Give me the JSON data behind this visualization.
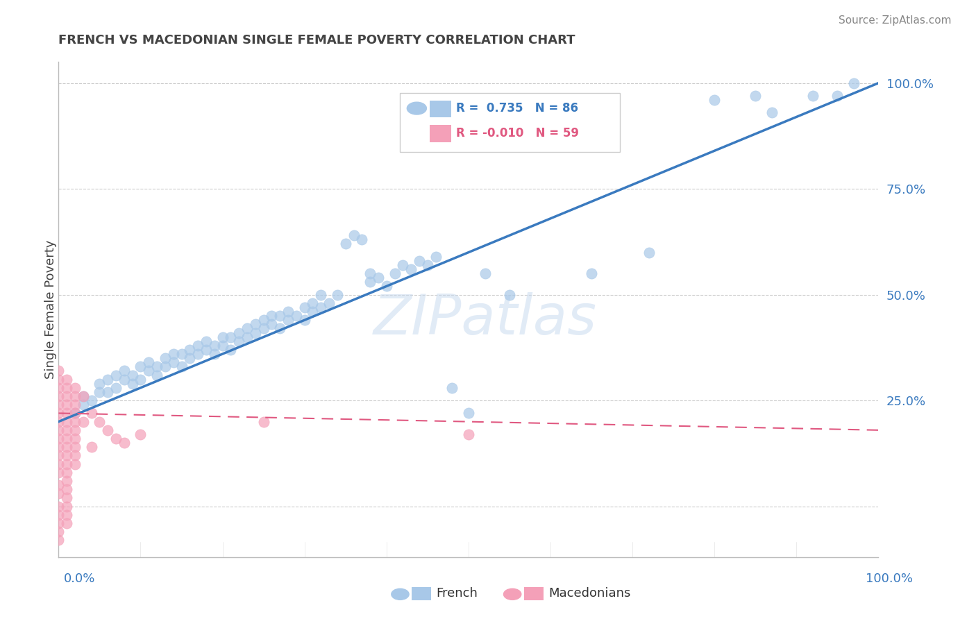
{
  "title": "FRENCH VS MACEDONIAN SINGLE FEMALE POVERTY CORRELATION CHART",
  "source": "Source: ZipAtlas.com",
  "ylabel": "Single Female Poverty",
  "right_yticklabels": [
    "",
    "25.0%",
    "50.0%",
    "75.0%",
    "100.0%"
  ],
  "right_ytick_positions": [
    0.0,
    0.25,
    0.5,
    0.75,
    1.0
  ],
  "french_R": 0.735,
  "french_N": 86,
  "macedonian_R": -0.01,
  "macedonian_N": 59,
  "french_color": "#a8c8e8",
  "french_line_color": "#3a7abf",
  "macedonian_color": "#f4a0b8",
  "macedonian_line_color": "#e05880",
  "watermark": "ZIPatlas",
  "background_color": "#ffffff",
  "french_scatter": [
    [
      0.02,
      0.22
    ],
    [
      0.03,
      0.24
    ],
    [
      0.03,
      0.26
    ],
    [
      0.04,
      0.25
    ],
    [
      0.05,
      0.27
    ],
    [
      0.05,
      0.29
    ],
    [
      0.06,
      0.27
    ],
    [
      0.06,
      0.3
    ],
    [
      0.07,
      0.28
    ],
    [
      0.07,
      0.31
    ],
    [
      0.08,
      0.3
    ],
    [
      0.08,
      0.32
    ],
    [
      0.09,
      0.29
    ],
    [
      0.09,
      0.31
    ],
    [
      0.1,
      0.3
    ],
    [
      0.1,
      0.33
    ],
    [
      0.11,
      0.32
    ],
    [
      0.11,
      0.34
    ],
    [
      0.12,
      0.31
    ],
    [
      0.12,
      0.33
    ],
    [
      0.13,
      0.33
    ],
    [
      0.13,
      0.35
    ],
    [
      0.14,
      0.34
    ],
    [
      0.14,
      0.36
    ],
    [
      0.15,
      0.33
    ],
    [
      0.15,
      0.36
    ],
    [
      0.16,
      0.35
    ],
    [
      0.16,
      0.37
    ],
    [
      0.17,
      0.36
    ],
    [
      0.17,
      0.38
    ],
    [
      0.18,
      0.37
    ],
    [
      0.18,
      0.39
    ],
    [
      0.19,
      0.36
    ],
    [
      0.19,
      0.38
    ],
    [
      0.2,
      0.38
    ],
    [
      0.2,
      0.4
    ],
    [
      0.21,
      0.37
    ],
    [
      0.21,
      0.4
    ],
    [
      0.22,
      0.39
    ],
    [
      0.22,
      0.41
    ],
    [
      0.23,
      0.4
    ],
    [
      0.23,
      0.42
    ],
    [
      0.24,
      0.41
    ],
    [
      0.24,
      0.43
    ],
    [
      0.25,
      0.42
    ],
    [
      0.25,
      0.44
    ],
    [
      0.26,
      0.43
    ],
    [
      0.26,
      0.45
    ],
    [
      0.27,
      0.42
    ],
    [
      0.27,
      0.45
    ],
    [
      0.28,
      0.44
    ],
    [
      0.28,
      0.46
    ],
    [
      0.29,
      0.45
    ],
    [
      0.3,
      0.47
    ],
    [
      0.3,
      0.44
    ],
    [
      0.31,
      0.46
    ],
    [
      0.31,
      0.48
    ],
    [
      0.32,
      0.47
    ],
    [
      0.32,
      0.5
    ],
    [
      0.33,
      0.48
    ],
    [
      0.34,
      0.5
    ],
    [
      0.35,
      0.62
    ],
    [
      0.36,
      0.64
    ],
    [
      0.37,
      0.63
    ],
    [
      0.38,
      0.53
    ],
    [
      0.38,
      0.55
    ],
    [
      0.39,
      0.54
    ],
    [
      0.4,
      0.52
    ],
    [
      0.41,
      0.55
    ],
    [
      0.42,
      0.57
    ],
    [
      0.43,
      0.56
    ],
    [
      0.44,
      0.58
    ],
    [
      0.45,
      0.57
    ],
    [
      0.46,
      0.59
    ],
    [
      0.48,
      0.28
    ],
    [
      0.5,
      0.22
    ],
    [
      0.52,
      0.55
    ],
    [
      0.55,
      0.5
    ],
    [
      0.65,
      0.55
    ],
    [
      0.72,
      0.6
    ],
    [
      0.8,
      0.96
    ],
    [
      0.85,
      0.97
    ],
    [
      0.87,
      0.93
    ],
    [
      0.92,
      0.97
    ],
    [
      0.95,
      0.97
    ],
    [
      0.97,
      1.0
    ]
  ],
  "macedonian_scatter": [
    [
      0.0,
      0.32
    ],
    [
      0.0,
      0.3
    ],
    [
      0.0,
      0.28
    ],
    [
      0.0,
      0.26
    ],
    [
      0.0,
      0.24
    ],
    [
      0.0,
      0.22
    ],
    [
      0.0,
      0.2
    ],
    [
      0.0,
      0.18
    ],
    [
      0.0,
      0.16
    ],
    [
      0.0,
      0.14
    ],
    [
      0.0,
      0.12
    ],
    [
      0.0,
      0.1
    ],
    [
      0.0,
      0.08
    ],
    [
      0.0,
      0.05
    ],
    [
      0.0,
      0.03
    ],
    [
      0.0,
      0.0
    ],
    [
      0.0,
      -0.02
    ],
    [
      0.0,
      -0.04
    ],
    [
      0.0,
      -0.06
    ],
    [
      0.0,
      -0.08
    ],
    [
      0.01,
      0.3
    ],
    [
      0.01,
      0.28
    ],
    [
      0.01,
      0.26
    ],
    [
      0.01,
      0.24
    ],
    [
      0.01,
      0.22
    ],
    [
      0.01,
      0.2
    ],
    [
      0.01,
      0.18
    ],
    [
      0.01,
      0.16
    ],
    [
      0.01,
      0.14
    ],
    [
      0.01,
      0.12
    ],
    [
      0.01,
      0.1
    ],
    [
      0.01,
      0.08
    ],
    [
      0.01,
      0.06
    ],
    [
      0.01,
      0.04
    ],
    [
      0.01,
      0.02
    ],
    [
      0.01,
      0.0
    ],
    [
      0.01,
      -0.02
    ],
    [
      0.01,
      -0.04
    ],
    [
      0.02,
      0.28
    ],
    [
      0.02,
      0.26
    ],
    [
      0.02,
      0.24
    ],
    [
      0.02,
      0.22
    ],
    [
      0.02,
      0.2
    ],
    [
      0.02,
      0.18
    ],
    [
      0.02,
      0.16
    ],
    [
      0.02,
      0.14
    ],
    [
      0.02,
      0.12
    ],
    [
      0.02,
      0.1
    ],
    [
      0.03,
      0.26
    ],
    [
      0.03,
      0.2
    ],
    [
      0.04,
      0.22
    ],
    [
      0.04,
      0.14
    ],
    [
      0.05,
      0.2
    ],
    [
      0.06,
      0.18
    ],
    [
      0.07,
      0.16
    ],
    [
      0.08,
      0.15
    ],
    [
      0.1,
      0.17
    ],
    [
      0.25,
      0.2
    ],
    [
      0.5,
      0.17
    ]
  ],
  "xlim": [
    0.0,
    1.0
  ],
  "ylim": [
    -0.12,
    1.05
  ]
}
